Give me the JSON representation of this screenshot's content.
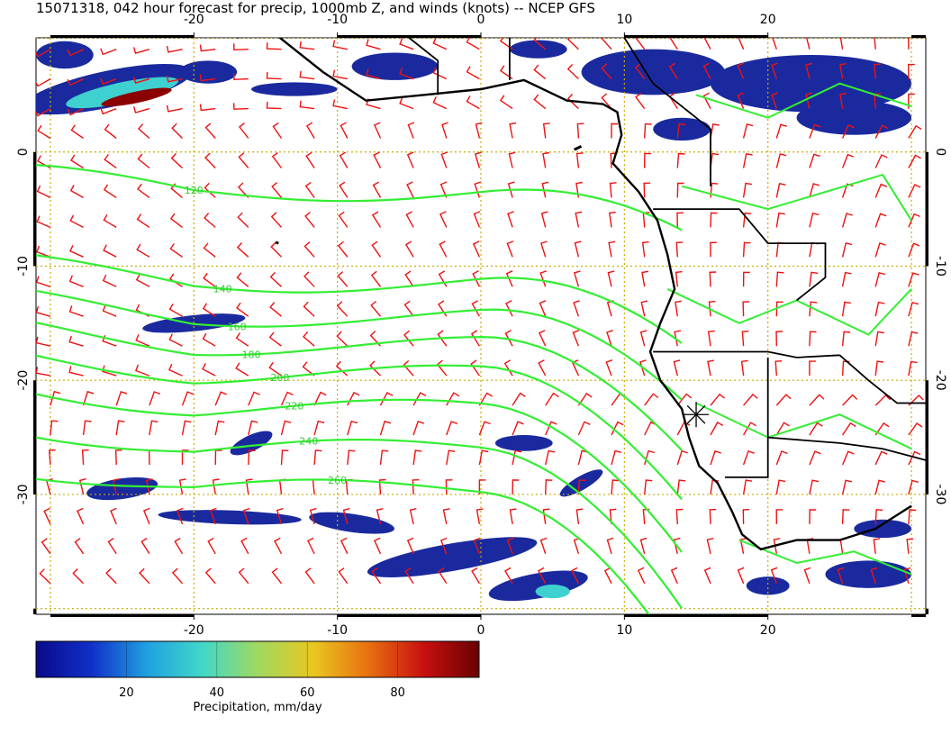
{
  "title": "15071318, 042 hour forecast for precip, 1000mb Z, and winds (knots) -- NCEP GFS",
  "map": {
    "lon_range": [
      -31,
      31
    ],
    "lat_range": [
      -40.5,
      10
    ],
    "lon_ticks": [
      "-20",
      "-10",
      "0",
      "10",
      "20"
    ],
    "lat_ticks": [
      "0",
      "-10",
      "-20",
      "-30"
    ],
    "grid_lons": [
      -30,
      -20,
      -10,
      0,
      10,
      20,
      30
    ],
    "grid_lats": [
      10,
      0,
      -10,
      -20,
      -30,
      -40
    ],
    "colors": {
      "coast": "#000000",
      "contour": "#33ee33",
      "barb": "#ee1111",
      "grid": "#ccaa00",
      "precip_low": "#1a2a9e",
      "precip_mid": "#3fd0d0",
      "precip_high": "#8b0000"
    }
  },
  "contours": [
    {
      "label": "120",
      "lat": -3.5
    },
    {
      "label": "140",
      "lat": -11.5
    },
    {
      "label": "160",
      "lat": -14.5
    },
    {
      "label": "180",
      "lat": -17.0
    },
    {
      "label": "200",
      "lat": -19.5
    },
    {
      "label": "220",
      "lat": -22.5
    },
    {
      "label": "240",
      "lat": -26.0
    },
    {
      "label": "260",
      "lat": -29.5
    }
  ],
  "colorbar": {
    "ticks": [
      "20",
      "40",
      "60",
      "80"
    ],
    "range": [
      0,
      98
    ],
    "label": "Precipitation, mm/day",
    "stops": [
      "#0a0a8a",
      "#1030c8",
      "#20a0e0",
      "#40d8c8",
      "#a0d860",
      "#e8c820",
      "#e87010",
      "#c81010",
      "#6a0000"
    ]
  }
}
